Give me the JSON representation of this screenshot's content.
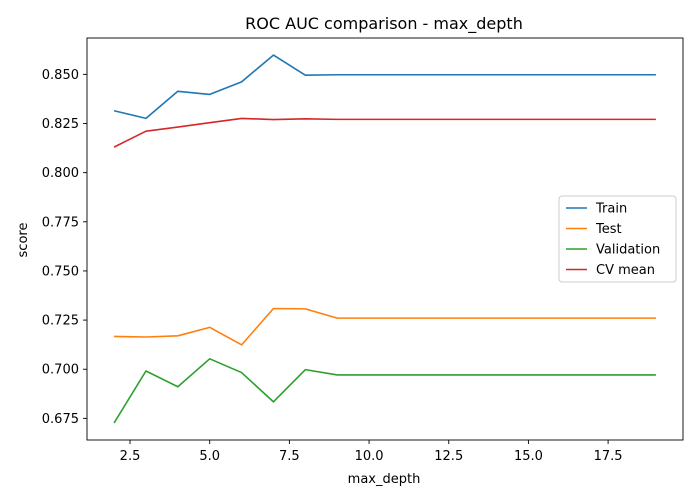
{
  "chart_data": {
    "type": "line",
    "title": "ROC AUC comparison - max_depth",
    "xlabel": "max_depth",
    "ylabel": "score",
    "x": [
      2,
      3,
      4,
      5,
      6,
      7,
      8,
      9,
      10,
      11,
      12,
      13,
      14,
      15,
      16,
      17,
      18,
      19
    ],
    "xlim": [
      1.15,
      19.85
    ],
    "ylim": [
      0.664,
      0.8685
    ],
    "xticks": [
      2.5,
      5.0,
      7.5,
      10.0,
      12.5,
      15.0,
      17.5
    ],
    "xtick_labels": [
      "2.5",
      "5.0",
      "7.5",
      "10.0",
      "12.5",
      "15.0",
      "17.5"
    ],
    "yticks": [
      0.675,
      0.7,
      0.725,
      0.75,
      0.775,
      0.8,
      0.825,
      0.85
    ],
    "ytick_labels": [
      "0.675",
      "0.700",
      "0.725",
      "0.750",
      "0.775",
      "0.800",
      "0.825",
      "0.850"
    ],
    "grid": false,
    "legend_position": "center-right",
    "series": [
      {
        "name": "Train",
        "color": "#1f77b4",
        "values": [
          0.8315,
          0.8276,
          0.8414,
          0.8398,
          0.8462,
          0.8598,
          0.8496,
          0.8498,
          0.8498,
          0.8498,
          0.8498,
          0.8498,
          0.8498,
          0.8498,
          0.8498,
          0.8498,
          0.8498,
          0.8498
        ]
      },
      {
        "name": "Test",
        "color": "#ff7f0e",
        "values": [
          0.7167,
          0.7164,
          0.717,
          0.7213,
          0.7124,
          0.7309,
          0.7307,
          0.726,
          0.726,
          0.726,
          0.726,
          0.726,
          0.726,
          0.726,
          0.726,
          0.726,
          0.726,
          0.726
        ]
      },
      {
        "name": "Validation",
        "color": "#2ca02c",
        "values": [
          0.6727,
          0.6991,
          0.6911,
          0.7053,
          0.6983,
          0.6834,
          0.6998,
          0.6971,
          0.6971,
          0.6971,
          0.6971,
          0.6971,
          0.6971,
          0.6971,
          0.6971,
          0.6971,
          0.6971,
          0.6971
        ]
      },
      {
        "name": "CV mean",
        "color": "#d62728",
        "values": [
          0.813,
          0.8211,
          0.8232,
          0.8254,
          0.8276,
          0.827,
          0.8274,
          0.8271,
          0.8271,
          0.8271,
          0.8271,
          0.8271,
          0.8271,
          0.8271,
          0.8271,
          0.8271,
          0.8271,
          0.8271
        ]
      }
    ]
  }
}
